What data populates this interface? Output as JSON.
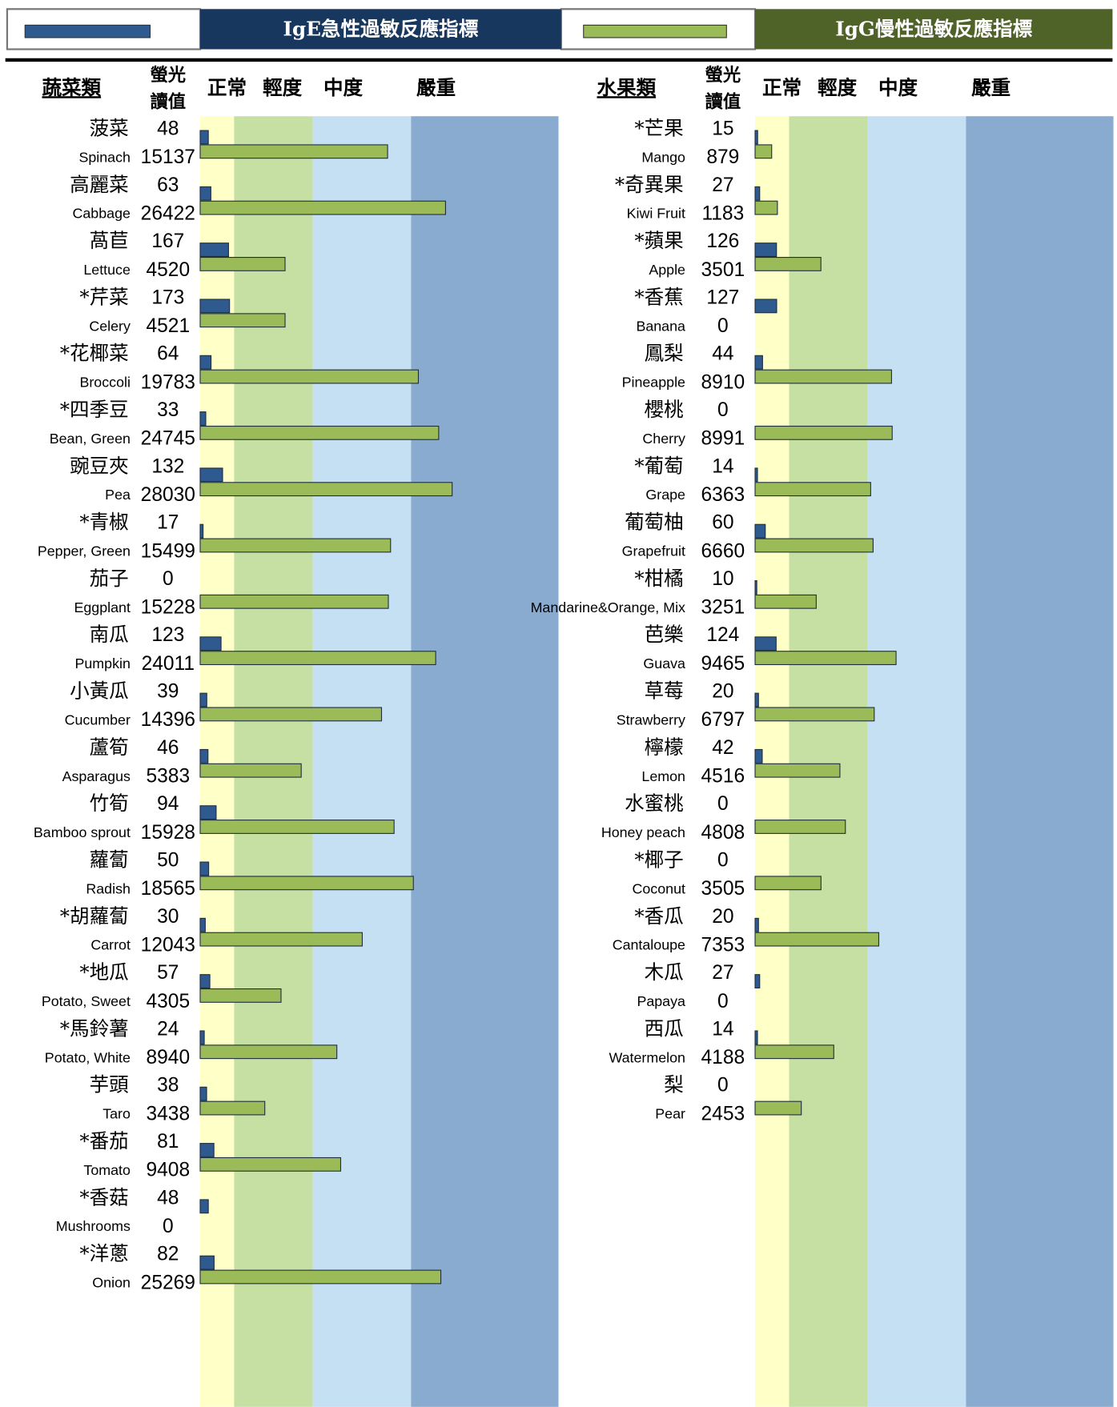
{
  "legend": [
    {
      "name": "IgE急性過敏反應指標",
      "color": "#2f5a8f",
      "header_color": "#17375e"
    },
    {
      "name": "IgG慢性過敏反應指標",
      "color": "#9bbb59",
      "header_color": "#4f6228"
    }
  ],
  "zones": [
    "正常",
    "輕度",
    "中度",
    "嚴重"
  ],
  "zone_colors": [
    "#ffffc8",
    "#c6e0a4",
    "#c5dff3",
    "#8aabd0"
  ],
  "ige_axis": [
    0,
    200,
    600,
    1200,
    2000
  ],
  "igg_axis": [
    0,
    1800,
    6000,
    18000,
    54000
  ],
  "value_title": [
    "螢光",
    "讀值"
  ],
  "chart_data": [
    {
      "type": "bar",
      "category_title": "蔬菜類",
      "categories": [
        "菠菜",
        "高麗菜",
        "萵苣",
        "*芹菜",
        "*花椰菜",
        "*四季豆",
        "豌豆夾",
        "*青椒",
        "茄子",
        "南瓜",
        "小黃瓜",
        "蘆筍",
        "竹筍",
        "蘿蔔",
        "*胡蘿蔔",
        "*地瓜",
        "*馬鈴薯",
        "芋頭",
        "*番茄",
        "*香菇",
        "*洋蔥"
      ],
      "categories_en": [
        "Spinach",
        "Cabbage",
        "Lettuce",
        "Celery",
        "Broccoli",
        "Bean, Green",
        "Pea",
        "Pepper, Green",
        "Eggplant",
        "Pumpkin",
        "Cucumber",
        "Asparagus",
        "Bamboo sprout",
        "Radish",
        "Carrot",
        "Potato, Sweet",
        "Potato, White",
        "Taro",
        "Tomato",
        "Mushrooms",
        "Onion"
      ],
      "series": [
        {
          "color": "#2f5a8f",
          "values": [
            48,
            63,
            167,
            173,
            64,
            33,
            132,
            17,
            0,
            123,
            39,
            46,
            94,
            50,
            30,
            57,
            24,
            38,
            81,
            48,
            82
          ]
        },
        {
          "color": "#9bbb59",
          "values": [
            15137,
            26422,
            4520,
            4521,
            19783,
            24745,
            28030,
            15499,
            15228,
            24011,
            14396,
            5383,
            15928,
            18565,
            12043,
            4305,
            8940,
            3438,
            9408,
            0,
            25269
          ]
        }
      ]
    },
    {
      "type": "bar",
      "category_title": "水果類",
      "categories": [
        "*芒果",
        "*奇異果",
        "*蘋果",
        "*香蕉",
        "鳳梨",
        "櫻桃",
        "*葡萄",
        "葡萄柚",
        "*柑橘",
        "芭樂",
        "草莓",
        "檸檬",
        "水蜜桃",
        "*椰子",
        "*香瓜",
        "木瓜",
        "西瓜",
        "梨"
      ],
      "categories_en": [
        "Mango",
        "Kiwi Fruit",
        "Apple",
        "Banana",
        "Pineapple",
        "Cherry",
        "Grape",
        "Grapefruit",
        "Mandarine&Orange, Mix",
        "Guava",
        "Strawberry",
        "Lemon",
        "Honey peach",
        "Coconut",
        "Cantaloupe",
        "Papaya",
        "Watermelon",
        "Pear"
      ],
      "series": [
        {
          "color": "#2f5a8f",
          "values": [
            15,
            27,
            126,
            127,
            44,
            0,
            14,
            60,
            10,
            124,
            20,
            42,
            0,
            0,
            20,
            27,
            14,
            0
          ]
        },
        {
          "color": "#9bbb59",
          "values": [
            879,
            1183,
            3501,
            0,
            8910,
            8991,
            6363,
            6660,
            3251,
            9465,
            6797,
            4516,
            4808,
            3505,
            7353,
            0,
            4188,
            2453
          ]
        }
      ]
    }
  ]
}
